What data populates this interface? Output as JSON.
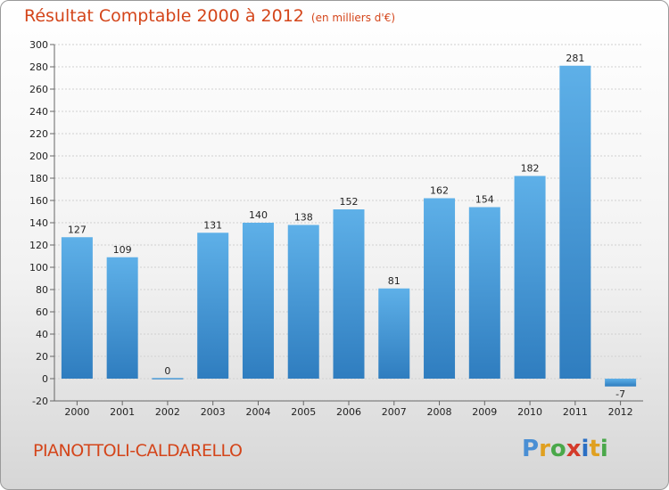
{
  "header": {
    "title": "Résultat Comptable 2000 à 2012",
    "subtitle": "(en milliers d'€)"
  },
  "footer": {
    "commune": "PIANOTTOLI-CALDARELLO",
    "logo_letters": [
      "P",
      "r",
      "o",
      "x",
      "i",
      "t",
      "i"
    ],
    "logo_colors": [
      "#4a8fd4",
      "#e0a020",
      "#4aa84a",
      "#d43a2a",
      "#2a6fc4",
      "#e0a020",
      "#4aa84a"
    ]
  },
  "chart_data": {
    "type": "bar",
    "title": "Résultat Comptable 2000 à 2012",
    "xlabel": "",
    "ylabel": "",
    "categories": [
      "2000",
      "2001",
      "2002",
      "2003",
      "2004",
      "2005",
      "2006",
      "2007",
      "2008",
      "2009",
      "2010",
      "2011",
      "2012"
    ],
    "values": [
      127,
      109,
      0,
      131,
      140,
      138,
      152,
      81,
      162,
      154,
      182,
      281,
      -7
    ],
    "value_labels": [
      "127",
      "109",
      "0",
      "131",
      "140",
      "138",
      "152",
      "81",
      "162",
      "154",
      "182",
      "281",
      "-7"
    ],
    "ylim": [
      -20,
      300
    ],
    "yticks": [
      -20,
      0,
      20,
      40,
      60,
      80,
      100,
      120,
      140,
      160,
      180,
      200,
      220,
      240,
      260,
      280,
      300
    ],
    "ytick_labels": [
      "-20",
      "0",
      "20",
      "40",
      "60",
      "80",
      "100",
      "120",
      "140",
      "160",
      "180",
      "200",
      "220",
      "240",
      "260",
      "280",
      "300"
    ],
    "grid": true,
    "bar_color_light": "#5eb0e8",
    "bar_color_dark": "#2f7dbf"
  }
}
